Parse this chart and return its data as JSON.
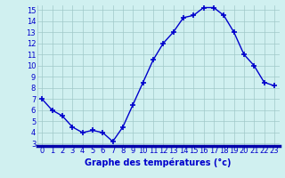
{
  "hours": [
    0,
    1,
    2,
    3,
    4,
    5,
    6,
    7,
    8,
    9,
    10,
    11,
    12,
    13,
    14,
    15,
    16,
    17,
    18,
    19,
    20,
    21,
    22,
    23
  ],
  "temps": [
    7.0,
    6.0,
    5.5,
    4.5,
    4.0,
    4.2,
    4.0,
    3.2,
    4.5,
    6.5,
    8.5,
    10.5,
    12.0,
    13.0,
    14.3,
    14.5,
    15.2,
    15.2,
    14.5,
    13.0,
    11.0,
    10.0,
    8.5,
    8.2
  ],
  "xlabel": "Graphe des températures (°c)",
  "xlim_min": -0.5,
  "xlim_max": 23.5,
  "ylim_min": 2.8,
  "ylim_max": 15.4,
  "yticks": [
    3,
    4,
    5,
    6,
    7,
    8,
    9,
    10,
    11,
    12,
    13,
    14,
    15
  ],
  "xticks": [
    0,
    1,
    2,
    3,
    4,
    5,
    6,
    7,
    8,
    9,
    10,
    11,
    12,
    13,
    14,
    15,
    16,
    17,
    18,
    19,
    20,
    21,
    22,
    23
  ],
  "line_color": "#0000cc",
  "marker": "+",
  "bg_color": "#d0f0f0",
  "grid_color": "#a0c8c8",
  "axis_label_color": "#0000cc",
  "tick_color": "#0000cc",
  "xlabel_fontsize": 7,
  "tick_fontsize": 6,
  "bottom_bar_color": "#0000aa"
}
